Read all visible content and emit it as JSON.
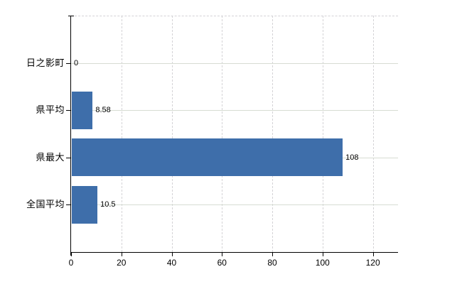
{
  "chart_data": {
    "type": "bar",
    "orientation": "horizontal",
    "title": "",
    "categories": [
      "日之影町",
      "県平均",
      "県最大",
      "全国平均"
    ],
    "values": [
      0,
      8.58,
      108,
      10.5
    ],
    "value_labels": [
      "0",
      "8.58",
      "108",
      "10.5"
    ],
    "x_ticks": [
      0,
      20,
      40,
      60,
      80,
      100,
      120
    ],
    "x_tick_labels": [
      "0",
      "20",
      "40",
      "60",
      "80",
      "100",
      "120"
    ],
    "xlim": [
      0,
      130
    ],
    "legend": "none",
    "grid": {
      "vertical": "dashed",
      "horizontal": "solid",
      "top_border": "dashed"
    },
    "colors": {
      "bar": "#3e6eaa",
      "axis": "#000000",
      "grid_solid": "#d7dcd3",
      "grid_dashed": "#d4d3d6",
      "background": "#ffffff",
      "text": "#000000"
    }
  }
}
